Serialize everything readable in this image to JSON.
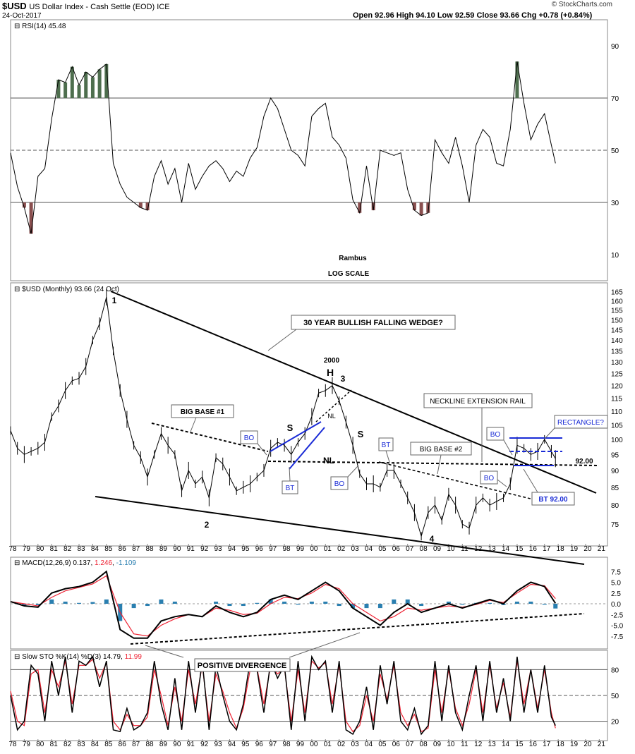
{
  "header": {
    "symbol": "$USD",
    "name": "US Dollar Index - Cash Settle (EOD) ICE",
    "date": "24-Oct-2017",
    "ohlc": "Open 92.96  High 94.10  Low 92.59  Close 93.66  Chg +0.78 (+0.84%)",
    "brand": "© StockCharts.com"
  },
  "colors": {
    "up_fill": "#4e6e4e",
    "down_fill": "#8a4f4f",
    "bo_text": "#1a2bd6",
    "rail": "#1a2bd6",
    "signal": "#e23",
    "hist": "#2a7fb0"
  },
  "chart_data": [
    {
      "id": "rsi",
      "type": "line",
      "legend": "RSI(14) 45.48",
      "yticks": [
        90,
        70,
        50,
        30,
        10
      ],
      "ylim": [
        0,
        100
      ],
      "reference_lines": [
        70,
        50,
        30
      ],
      "xlim": [
        1978,
        2021.6
      ],
      "series": [
        {
          "name": "RSI(14)",
          "x": [
            1978,
            1978.5,
            1979,
            1979.5,
            1980,
            1980.5,
            1981,
            1981.5,
            1982,
            1982.5,
            1983,
            1983.5,
            1984,
            1984.5,
            1985,
            1985.5,
            1986,
            1986.5,
            1987,
            1987.5,
            1988,
            1988.5,
            1989,
            1989.5,
            1990,
            1990.5,
            1991,
            1991.5,
            1992,
            1992.5,
            1993,
            1993.5,
            1994,
            1994.5,
            1995,
            1995.5,
            1996,
            1996.5,
            1997,
            1997.5,
            1998,
            1998.5,
            1999,
            1999.5,
            2000,
            2000.5,
            2001,
            2001.5,
            2002,
            2002.5,
            2003,
            2003.5,
            2004,
            2004.5,
            2005,
            2005.5,
            2006,
            2006.5,
            2007,
            2007.5,
            2008,
            2008.5,
            2009,
            2009.5,
            2010,
            2010.5,
            2011,
            2011.5,
            2012,
            2012.5,
            2013,
            2013.5,
            2014,
            2014.5,
            2015,
            2015.5,
            2016,
            2016.5,
            2017,
            2017.5,
            2017.8
          ],
          "values": [
            49,
            36,
            28,
            18,
            40,
            43,
            62,
            77,
            76,
            82,
            75,
            80,
            78,
            81,
            83,
            45,
            37,
            32,
            30,
            28,
            27,
            40,
            46,
            37,
            43,
            30,
            45,
            35,
            40,
            44,
            46,
            43,
            38,
            42,
            40,
            47,
            51,
            63,
            70,
            66,
            58,
            50,
            48,
            44,
            63,
            66,
            68,
            55,
            52,
            47,
            31,
            26,
            44,
            27,
            50,
            49,
            48,
            49,
            35,
            27,
            25,
            26,
            54,
            49,
            45,
            55,
            44,
            30,
            52,
            58,
            55,
            45,
            44,
            58,
            84,
            68,
            54,
            60,
            64,
            52,
            45
          ]
        }
      ]
    },
    {
      "id": "price",
      "type": "line",
      "legend": "$USD (Monthly) 93.66 (24 Oct)",
      "scale": "log",
      "yticks": [
        165,
        160,
        155,
        150,
        145,
        140,
        135,
        130,
        125,
        120,
        115,
        110,
        105,
        100,
        95,
        90,
        85,
        80,
        75
      ],
      "ylim": [
        70,
        168
      ],
      "xlim": [
        1978,
        2021.6
      ],
      "xticks": [
        "78",
        "79",
        "80",
        "81",
        "82",
        "83",
        "84",
        "85",
        "86",
        "87",
        "88",
        "89",
        "90",
        "91",
        "92",
        "93",
        "94",
        "95",
        "96",
        "97",
        "98",
        "99",
        "00",
        "01",
        "02",
        "03",
        "04",
        "05",
        "06",
        "07",
        "08",
        "09",
        "10",
        "11",
        "12",
        "13",
        "14",
        "15",
        "16",
        "17",
        "18",
        "19",
        "20",
        "21"
      ],
      "series": [
        {
          "name": "$USD",
          "x": [
            1978,
            1978.5,
            1979,
            1979.5,
            1980,
            1980.5,
            1981,
            1981.5,
            1982,
            1982.5,
            1983,
            1983.5,
            1984,
            1984.5,
            1985,
            1985.5,
            1986,
            1986.5,
            1987,
            1987.5,
            1988,
            1988.5,
            1989,
            1989.5,
            1990,
            1990.5,
            1991,
            1991.5,
            1992,
            1992.5,
            1993,
            1993.5,
            1994,
            1994.5,
            1995,
            1995.5,
            1996,
            1996.5,
            1997,
            1997.5,
            1998,
            1998.5,
            1999,
            1999.5,
            2000,
            2000.5,
            2001,
            2001.5,
            2002,
            2002.5,
            2003,
            2003.5,
            2004,
            2004.5,
            2005,
            2005.5,
            2006,
            2006.5,
            2007,
            2007.5,
            2008,
            2008.5,
            2009,
            2009.5,
            2010,
            2010.5,
            2011,
            2011.5,
            2012,
            2012.5,
            2013,
            2013.5,
            2014,
            2014.5,
            2015,
            2015.5,
            2016,
            2016.5,
            2017,
            2017.5,
            2017.8
          ],
          "values": [
            103,
            97,
            95,
            96,
            97,
            99,
            108,
            112,
            118,
            122,
            123,
            128,
            140,
            148,
            162,
            135,
            118,
            107,
            98,
            94,
            88,
            95,
            102,
            98,
            95,
            84,
            90,
            86,
            88,
            82,
            94,
            92,
            88,
            84,
            85,
            86,
            88,
            90,
            97,
            99,
            98,
            95,
            99,
            102,
            108,
            117,
            118,
            120,
            114,
            106,
            98,
            89,
            86,
            86,
            85,
            90,
            90,
            86,
            82,
            78,
            72,
            78,
            80,
            76,
            83,
            80,
            75,
            74,
            80,
            82,
            80,
            81,
            82,
            86,
            98,
            97,
            95,
            96,
            100,
            96,
            93.66
          ]
        }
      ],
      "annotations": [
        "1",
        "2",
        "3",
        "4",
        "30 YEAR BULLISH FALLING WEDGE?",
        "2000",
        "H",
        "S",
        "S",
        "NL",
        "NL",
        "BIG BASE #1",
        "BIG BASE #2",
        "NECKLINE EXTENSION RAIL",
        "RECTANGLE?",
        "BO",
        "BO",
        "BO",
        "BO",
        "BT",
        "BT",
        "BT 92.00",
        "92.00",
        "Rambus",
        "LOG SCALE"
      ]
    },
    {
      "id": "macd",
      "type": "line",
      "legend": {
        "label": "MACD(12,26,9)",
        "macd": "0.137",
        "signal": "1.246",
        "hist": "-1.109"
      },
      "yticks": [
        "7.5",
        "5.0",
        "2.5",
        "0.0",
        "-2.5",
        "-5.0",
        "-7.5"
      ],
      "ylim": [
        -10,
        10
      ],
      "xlim": [
        1978,
        2021.6
      ],
      "annotations": [
        "POSITIVE DIVERGENCE"
      ],
      "series": [
        {
          "name": "MACD",
          "x": [
            1978,
            1979,
            1980,
            1981,
            1982,
            1983,
            1984,
            1985,
            1986,
            1987,
            1988,
            1989,
            1990,
            1991,
            1992,
            1993,
            1994,
            1995,
            1996,
            1997,
            1998,
            1999,
            2000,
            2001,
            2002,
            2003,
            2004,
            2005,
            2006,
            2007,
            2008,
            2009,
            2010,
            2011,
            2012,
            2013,
            2014,
            2015,
            2016,
            2017,
            2017.8
          ],
          "values": [
            0.5,
            -0.5,
            -0.8,
            2.5,
            3.5,
            4,
            5,
            7.5,
            -6,
            -8,
            -8,
            -4,
            -3,
            -2.5,
            -3,
            -0.5,
            -2,
            -3,
            -2,
            1,
            2,
            1,
            3,
            5,
            3,
            -1,
            -3,
            -5,
            -2,
            0,
            -2,
            -1,
            0,
            -1,
            0,
            1,
            0,
            3,
            5,
            4,
            0.1
          ]
        },
        {
          "name": "Signal",
          "x": [
            1978,
            1979,
            1980,
            1981,
            1982,
            1983,
            1984,
            1985,
            1986,
            1987,
            1988,
            1989,
            1990,
            1991,
            1992,
            1993,
            1994,
            1995,
            1996,
            1997,
            1998,
            1999,
            2000,
            2001,
            2002,
            2003,
            2004,
            2005,
            2006,
            2007,
            2008,
            2009,
            2010,
            2011,
            2012,
            2013,
            2014,
            2015,
            2016,
            2017,
            2017.8
          ],
          "values": [
            0.5,
            0,
            -0.5,
            1.5,
            3,
            3.8,
            4.6,
            6.5,
            -2,
            -7,
            -7.5,
            -5,
            -3.5,
            -2.5,
            -3,
            -1,
            -1.5,
            -2.5,
            -2.2,
            0,
            1.5,
            1.2,
            2.5,
            4.5,
            3.5,
            0,
            -2,
            -4,
            -3,
            -1,
            -1.5,
            -1,
            -0.5,
            -0.8,
            -0.2,
            0.8,
            0.3,
            2.5,
            4.5,
            4.2,
            1.2
          ]
        }
      ]
    },
    {
      "id": "stoch",
      "type": "line",
      "legend": {
        "label": "Slow STO %K(14) %D(3)",
        "k": "14.79",
        "d": "11.99"
      },
      "yticks": [
        "80",
        "50",
        "20"
      ],
      "ylim": [
        0,
        100
      ],
      "reference_lines": [
        80,
        50,
        20
      ],
      "xlim": [
        1978,
        2021.6
      ],
      "series": [
        {
          "name": "%K",
          "x": [
            1978,
            1978.5,
            1979,
            1979.5,
            1980,
            1980.5,
            1981,
            1981.5,
            1982,
            1982.5,
            1983,
            1983.5,
            1984,
            1984.5,
            1985,
            1985.5,
            1986,
            1986.5,
            1987,
            1987.5,
            1988,
            1988.5,
            1989,
            1989.5,
            1990,
            1990.5,
            1991,
            1991.5,
            1992,
            1992.5,
            1993,
            1993.5,
            1994,
            1994.5,
            1995,
            1995.5,
            1996,
            1996.5,
            1997,
            1997.5,
            1998,
            1998.5,
            1999,
            1999.5,
            2000,
            2000.5,
            2001,
            2001.5,
            2002,
            2002.5,
            2003,
            2003.5,
            2004,
            2004.5,
            2005,
            2005.5,
            2006,
            2006.5,
            2007,
            2007.5,
            2008,
            2008.5,
            2009,
            2009.5,
            2010,
            2010.5,
            2011,
            2011.5,
            2012,
            2012.5,
            2013,
            2013.5,
            2014,
            2014.5,
            2015,
            2015.5,
            2016,
            2016.5,
            2017,
            2017.5,
            2017.8
          ],
          "values": [
            50,
            10,
            20,
            85,
            75,
            20,
            90,
            50,
            95,
            30,
            90,
            85,
            95,
            60,
            90,
            10,
            8,
            35,
            10,
            15,
            30,
            90,
            40,
            10,
            70,
            10,
            90,
            30,
            90,
            10,
            85,
            50,
            20,
            10,
            40,
            90,
            80,
            30,
            90,
            70,
            85,
            10,
            90,
            20,
            95,
            80,
            90,
            30,
            90,
            10,
            5,
            20,
            60,
            10,
            85,
            40,
            90,
            20,
            10,
            35,
            5,
            15,
            90,
            20,
            85,
            30,
            10,
            50,
            85,
            20,
            90,
            30,
            70,
            20,
            95,
            30,
            80,
            30,
            85,
            25,
            15
          ]
        },
        {
          "name": "%D",
          "x": [
            1978,
            1978.5,
            1979,
            1979.5,
            1980,
            1980.5,
            1981,
            1981.5,
            1982,
            1982.5,
            1983,
            1983.5,
            1984,
            1984.5,
            1985,
            1985.5,
            1986,
            1986.5,
            1987,
            1987.5,
            1988,
            1988.5,
            1989,
            1989.5,
            1990,
            1990.5,
            1991,
            1991.5,
            1992,
            1992.5,
            1993,
            1993.5,
            1994,
            1994.5,
            1995,
            1995.5,
            1996,
            1996.5,
            1997,
            1997.5,
            1998,
            1998.5,
            1999,
            1999.5,
            2000,
            2000.5,
            2001,
            2001.5,
            2002,
            2002.5,
            2003,
            2003.5,
            2004,
            2004.5,
            2005,
            2005.5,
            2006,
            2006.5,
            2007,
            2007.5,
            2008,
            2008.5,
            2009,
            2009.5,
            2010,
            2010.5,
            2011,
            2011.5,
            2012,
            2012.5,
            2013,
            2013.5,
            2014,
            2014.5,
            2015,
            2015.5,
            2016,
            2016.5,
            2017,
            2017.5,
            2017.8
          ],
          "values": [
            55,
            20,
            15,
            75,
            80,
            30,
            80,
            60,
            90,
            40,
            85,
            85,
            92,
            70,
            88,
            20,
            10,
            28,
            15,
            15,
            25,
            80,
            50,
            15,
            60,
            20,
            80,
            40,
            85,
            20,
            75,
            55,
            30,
            12,
            35,
            80,
            82,
            40,
            85,
            75,
            82,
            20,
            80,
            30,
            90,
            82,
            88,
            40,
            85,
            20,
            8,
            15,
            50,
            20,
            75,
            45,
            85,
            30,
            15,
            28,
            8,
            12,
            80,
            30,
            80,
            35,
            15,
            40,
            80,
            30,
            85,
            35,
            65,
            25,
            90,
            40,
            80,
            35,
            80,
            30,
            12
          ]
        }
      ]
    }
  ]
}
